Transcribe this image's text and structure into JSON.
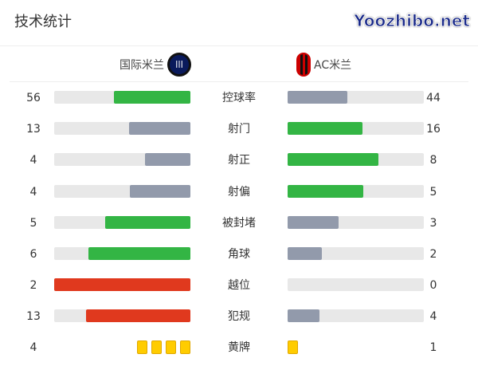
{
  "title": "技术统计",
  "home": {
    "name": "国际米兰",
    "logo": "inter-logo"
  },
  "away": {
    "name": "AC米兰",
    "logo": "ac-milan-logo"
  },
  "colors": {
    "green": "#33b544",
    "gray": "#929aab",
    "red": "#e0391e",
    "track": "#e8e8e8",
    "yellow": "#ffcc00"
  },
  "stats": [
    {
      "label": "控球率",
      "home": "56",
      "away": "44",
      "home_fill": 0.56,
      "away_fill": 0.44,
      "home_color": "#33b544",
      "away_color": "#929aab"
    },
    {
      "label": "射门",
      "home": "13",
      "away": "16",
      "home_fill": 0.448,
      "away_fill": 0.552,
      "home_color": "#929aab",
      "away_color": "#33b544"
    },
    {
      "label": "射正",
      "home": "4",
      "away": "8",
      "home_fill": 0.333,
      "away_fill": 0.667,
      "home_color": "#929aab",
      "away_color": "#33b544"
    },
    {
      "label": "射偏",
      "home": "4",
      "away": "5",
      "home_fill": 0.444,
      "away_fill": 0.556,
      "home_color": "#929aab",
      "away_color": "#33b544"
    },
    {
      "label": "被封堵",
      "home": "5",
      "away": "3",
      "home_fill": 0.625,
      "away_fill": 0.375,
      "home_color": "#33b544",
      "away_color": "#929aab"
    },
    {
      "label": "角球",
      "home": "6",
      "away": "2",
      "home_fill": 0.75,
      "away_fill": 0.25,
      "home_color": "#33b544",
      "away_color": "#929aab"
    },
    {
      "label": "越位",
      "home": "2",
      "away": "0",
      "home_fill": 1,
      "away_fill": 0,
      "home_color": "#e0391e",
      "away_color": "#929aab"
    },
    {
      "label": "犯规",
      "home": "13",
      "away": "4",
      "home_fill": 0.765,
      "away_fill": 0.235,
      "home_color": "#e0391e",
      "away_color": "#929aab"
    }
  ],
  "yellow_cards": {
    "label": "黄牌",
    "home": "4",
    "away": "1",
    "home_count": 4,
    "away_count": 1
  },
  "watermark": "Yoozhibo.net"
}
